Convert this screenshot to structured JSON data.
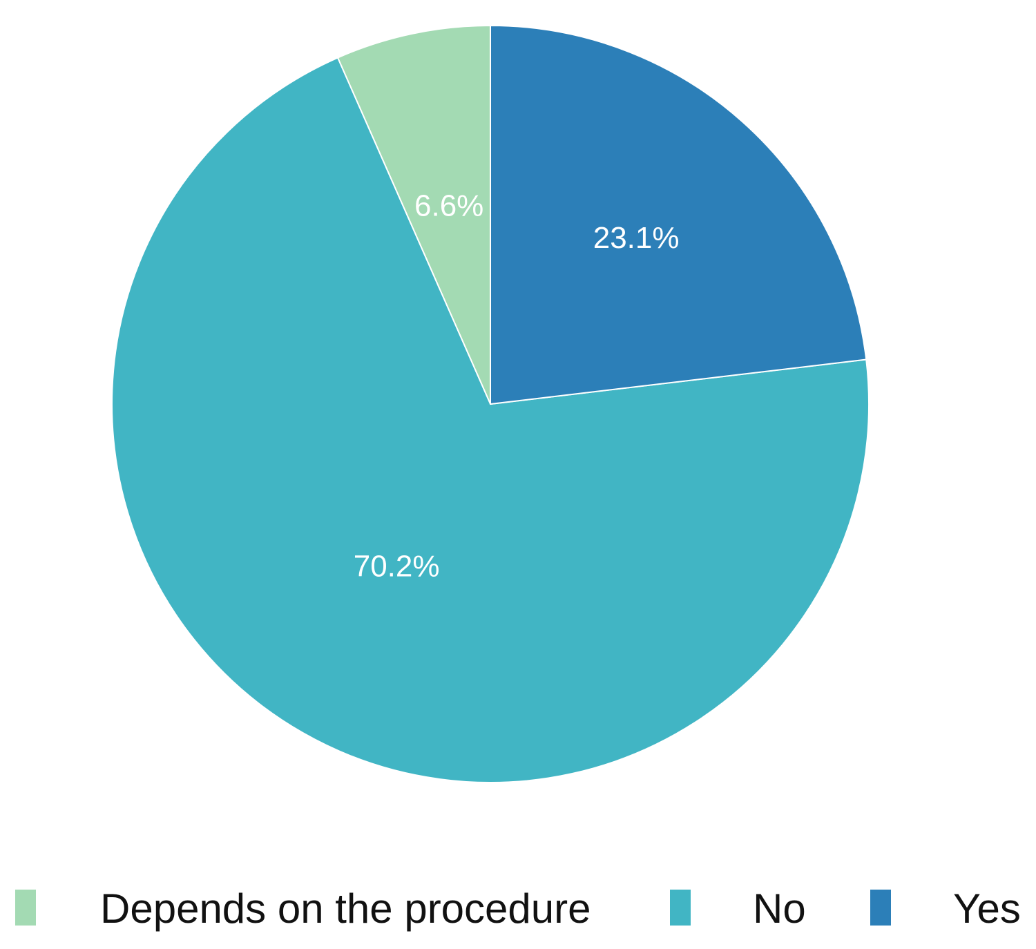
{
  "chart_data": {
    "type": "pie",
    "categories": [
      "Depends on the procedure",
      "No",
      "Yes"
    ],
    "values": [
      6.6,
      70.2,
      23.1
    ],
    "value_labels": [
      "6.6%",
      "70.2%",
      "23.1%"
    ],
    "colors": [
      "#a3dab3",
      "#41b5c4",
      "#2c7fb8"
    ],
    "start": "12 o'clock",
    "direction": "counterclockwise",
    "legend_position": "bottom"
  }
}
